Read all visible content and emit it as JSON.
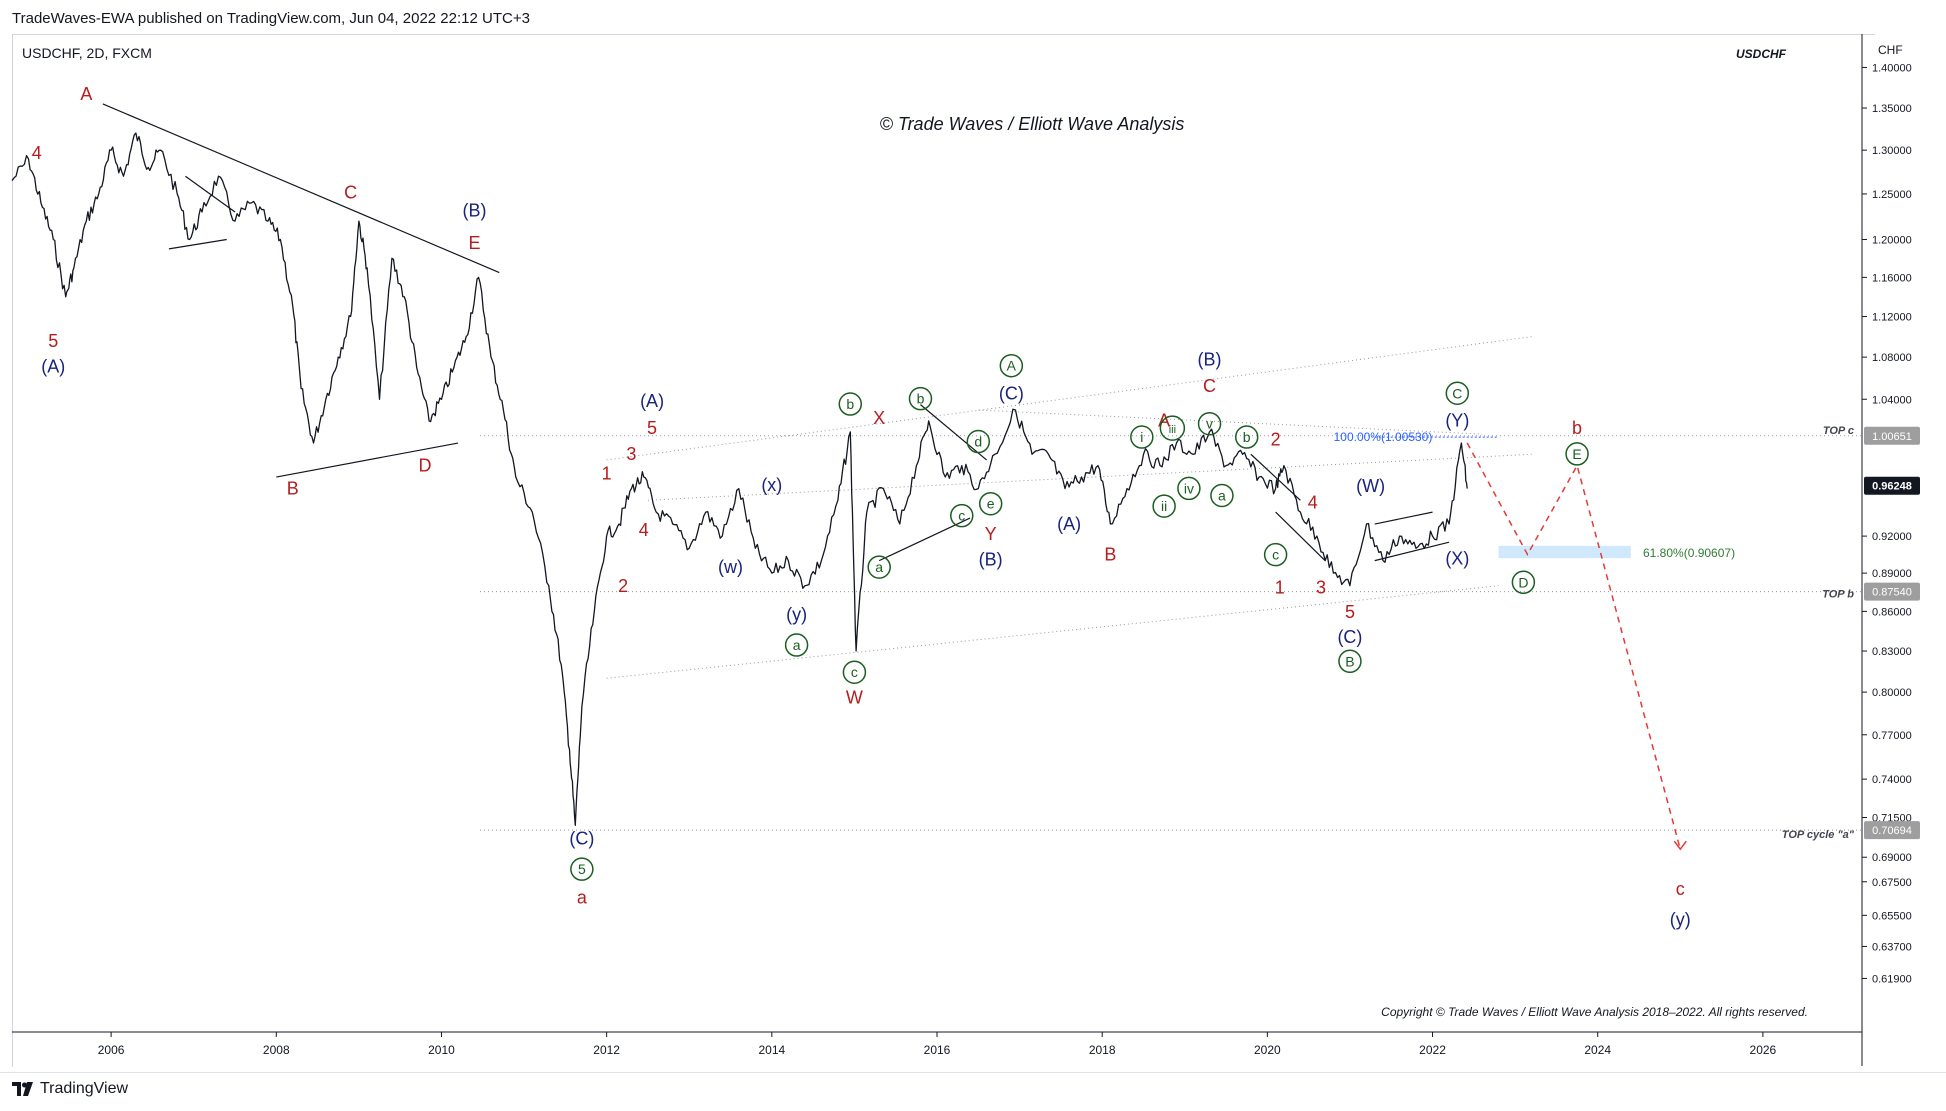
{
  "header": {
    "published": "TradeWaves-EWA published on TradingView.com, Jun 04, 2022 22:12 UTC+3"
  },
  "footer": {
    "brand": "TradingView"
  },
  "colors": {
    "price": "#131722",
    "red": "#b71c1c",
    "blue": "#1a237e",
    "green": "#1b5e20",
    "dashed": "#e53935",
    "fib": "#2962ff",
    "axis_text": "#131722",
    "grid": "#e0e3eb"
  },
  "chart_data": {
    "type": "line",
    "symbol_label": "USDCHF, 2D, FXCM",
    "symbol_right": "USDCHF",
    "watermark": "© Trade Waves / Elliott Wave Analysis",
    "copyright": "Copyright © Trade Waves / Elliott Wave Analysis 2018–2022. All rights reserved.",
    "currency": "CHF",
    "log_scale": true,
    "x_range": [
      2004.8,
      2027.2
    ],
    "y_range": [
      0.59,
      1.44
    ],
    "x_ticks": [
      2006,
      2008,
      2010,
      2012,
      2014,
      2016,
      2018,
      2020,
      2022,
      2024,
      2026
    ],
    "y_ticks": [
      "1.40000",
      "1.35000",
      "1.30000",
      "1.25000",
      "1.20000",
      "1.16000",
      "1.12000",
      "1.08000",
      "1.04000",
      "0.92000",
      "0.89000",
      "0.86000",
      "0.83000",
      "0.80000",
      "0.77000",
      "0.74000",
      "0.71500",
      "0.69000",
      "0.67500",
      "0.65500",
      "0.63700",
      "0.61900"
    ],
    "price_badges": [
      {
        "label": "1.00651",
        "value": 1.00651,
        "style": "grey"
      },
      {
        "label": "0.96248",
        "value": 0.96248,
        "style": "current"
      },
      {
        "label": "0.87540",
        "value": 0.8754,
        "style": "grey"
      },
      {
        "label": "0.70694",
        "value": 0.70694,
        "style": "grey"
      }
    ],
    "levels": [
      {
        "name": "TOP c",
        "value": 1.00651
      },
      {
        "name": "TOP b",
        "value": 0.8754
      },
      {
        "name": "TOP cycle \"a\"",
        "value": 0.70694
      }
    ],
    "fib_labels": [
      {
        "text": "100.00%(1.00530)",
        "x": 2021.4,
        "y": 1.0053,
        "color": "blue"
      },
      {
        "text": "61.80%(0.90607)",
        "x": 2024.5,
        "y": 0.90607,
        "color": "green"
      }
    ],
    "fib_zone": {
      "x0": 2022.8,
      "x1": 2024.4,
      "y0": 0.902,
      "y1": 0.912
    },
    "price_series": [
      [
        2004.8,
        1.265
      ],
      [
        2005.0,
        1.29
      ],
      [
        2005.15,
        1.24
      ],
      [
        2005.3,
        1.2
      ],
      [
        2005.45,
        1.14
      ],
      [
        2005.55,
        1.17
      ],
      [
        2005.7,
        1.22
      ],
      [
        2005.85,
        1.25
      ],
      [
        2006.0,
        1.3
      ],
      [
        2006.15,
        1.27
      ],
      [
        2006.3,
        1.32
      ],
      [
        2006.45,
        1.28
      ],
      [
        2006.6,
        1.3
      ],
      [
        2006.8,
        1.25
      ],
      [
        2006.95,
        1.2
      ],
      [
        2007.1,
        1.23
      ],
      [
        2007.3,
        1.27
      ],
      [
        2007.5,
        1.22
      ],
      [
        2007.7,
        1.24
      ],
      [
        2007.9,
        1.22
      ],
      [
        2008.05,
        1.2
      ],
      [
        2008.2,
        1.13
      ],
      [
        2008.3,
        1.05
      ],
      [
        2008.45,
        1.0
      ],
      [
        2008.6,
        1.04
      ],
      [
        2008.75,
        1.08
      ],
      [
        2008.9,
        1.12
      ],
      [
        2009.0,
        1.22
      ],
      [
        2009.1,
        1.17
      ],
      [
        2009.25,
        1.04
      ],
      [
        2009.4,
        1.18
      ],
      [
        2009.55,
        1.14
      ],
      [
        2009.7,
        1.07
      ],
      [
        2009.85,
        1.02
      ],
      [
        2010.0,
        1.04
      ],
      [
        2010.15,
        1.07
      ],
      [
        2010.3,
        1.1
      ],
      [
        2010.45,
        1.16
      ],
      [
        2010.6,
        1.08
      ],
      [
        2010.75,
        1.03
      ],
      [
        2010.9,
        0.97
      ],
      [
        2011.1,
        0.94
      ],
      [
        2011.3,
        0.88
      ],
      [
        2011.45,
        0.82
      ],
      [
        2011.55,
        0.76
      ],
      [
        2011.62,
        0.71
      ],
      [
        2011.7,
        0.79
      ],
      [
        2011.85,
        0.86
      ],
      [
        2012.0,
        0.92
      ],
      [
        2012.15,
        0.93
      ],
      [
        2012.3,
        0.96
      ],
      [
        2012.45,
        0.97
      ],
      [
        2012.6,
        0.94
      ],
      [
        2012.8,
        0.93
      ],
      [
        2013.0,
        0.91
      ],
      [
        2013.2,
        0.94
      ],
      [
        2013.4,
        0.92
      ],
      [
        2013.6,
        0.96
      ],
      [
        2013.8,
        0.91
      ],
      [
        2014.0,
        0.89
      ],
      [
        2014.2,
        0.9
      ],
      [
        2014.4,
        0.88
      ],
      [
        2014.6,
        0.9
      ],
      [
        2014.8,
        0.95
      ],
      [
        2014.95,
        1.01
      ],
      [
        2015.02,
        0.83
      ],
      [
        2015.15,
        0.94
      ],
      [
        2015.35,
        0.96
      ],
      [
        2015.55,
        0.93
      ],
      [
        2015.75,
        0.98
      ],
      [
        2015.9,
        1.02
      ],
      [
        2016.1,
        0.97
      ],
      [
        2016.3,
        0.98
      ],
      [
        2016.5,
        0.96
      ],
      [
        2016.7,
        0.99
      ],
      [
        2016.95,
        1.03
      ],
      [
        2017.15,
        0.99
      ],
      [
        2017.35,
        0.99
      ],
      [
        2017.55,
        0.96
      ],
      [
        2017.75,
        0.97
      ],
      [
        2017.95,
        0.98
      ],
      [
        2018.1,
        0.93
      ],
      [
        2018.3,
        0.96
      ],
      [
        2018.5,
        0.99
      ],
      [
        2018.7,
        0.98
      ],
      [
        2018.9,
        1.0
      ],
      [
        2019.1,
        0.99
      ],
      [
        2019.3,
        1.01
      ],
      [
        2019.5,
        0.98
      ],
      [
        2019.7,
        0.99
      ],
      [
        2019.9,
        0.97
      ],
      [
        2020.1,
        0.96
      ],
      [
        2020.2,
        0.98
      ],
      [
        2020.4,
        0.94
      ],
      [
        2020.6,
        0.92
      ],
      [
        2020.8,
        0.89
      ],
      [
        2021.0,
        0.88
      ],
      [
        2021.2,
        0.93
      ],
      [
        2021.4,
        0.9
      ],
      [
        2021.6,
        0.92
      ],
      [
        2021.8,
        0.91
      ],
      [
        2022.0,
        0.92
      ],
      [
        2022.2,
        0.93
      ],
      [
        2022.35,
        1.0
      ],
      [
        2022.42,
        0.96
      ]
    ],
    "projection": [
      [
        2022.42,
        1.0
      ],
      [
        2023.15,
        0.905
      ],
      [
        2023.75,
        0.98
      ],
      [
        2025.0,
        0.695
      ]
    ],
    "trendlines": [
      {
        "pts": [
          [
            2005.9,
            1.355
          ],
          [
            2010.7,
            1.165
          ]
        ],
        "style": "solid"
      },
      {
        "pts": [
          [
            2008.0,
            0.97
          ],
          [
            2010.2,
            1.0
          ]
        ],
        "style": "solid"
      },
      {
        "pts": [
          [
            2006.9,
            1.27
          ],
          [
            2007.5,
            1.23
          ]
        ],
        "style": "solid"
      },
      {
        "pts": [
          [
            2006.7,
            1.19
          ],
          [
            2007.4,
            1.2
          ]
        ],
        "style": "solid"
      },
      {
        "pts": [
          [
            2012.0,
            0.81
          ],
          [
            2022.8,
            0.88
          ]
        ],
        "style": "dotted"
      },
      {
        "pts": [
          [
            2012.0,
            0.985
          ],
          [
            2023.2,
            1.1
          ]
        ],
        "style": "dotted"
      },
      {
        "pts": [
          [
            2012.5,
            0.95
          ],
          [
            2023.2,
            0.99
          ]
        ],
        "style": "dotted"
      },
      {
        "pts": [
          [
            2016.5,
            1.03
          ],
          [
            2022.6,
            1.008
          ]
        ],
        "style": "dotted"
      },
      {
        "pts": [
          [
            2015.3,
            0.9
          ],
          [
            2016.4,
            0.935
          ]
        ],
        "style": "solid"
      },
      {
        "pts": [
          [
            2015.8,
            1.035
          ],
          [
            2016.6,
            0.985
          ]
        ],
        "style": "solid"
      },
      {
        "pts": [
          [
            2021.3,
            0.9
          ],
          [
            2022.2,
            0.915
          ]
        ],
        "style": "solid"
      },
      {
        "pts": [
          [
            2021.3,
            0.93
          ],
          [
            2022.0,
            0.94
          ]
        ],
        "style": "solid"
      },
      {
        "pts": [
          [
            2020.1,
            0.94
          ],
          [
            2020.7,
            0.9
          ]
        ],
        "style": "solid"
      },
      {
        "pts": [
          [
            2019.8,
            0.99
          ],
          [
            2020.4,
            0.95
          ]
        ],
        "style": "solid"
      }
    ],
    "wave_labels": [
      {
        "t": "4",
        "x": 2005.1,
        "y": 1.29,
        "c": "red"
      },
      {
        "t": "5",
        "x": 2005.3,
        "y": 1.09,
        "c": "red"
      },
      {
        "t": "(A)",
        "x": 2005.3,
        "y": 1.065,
        "c": "blue"
      },
      {
        "t": "A",
        "x": 2005.7,
        "y": 1.36,
        "c": "red"
      },
      {
        "t": "B",
        "x": 2008.2,
        "y": 0.955,
        "c": "red"
      },
      {
        "t": "C",
        "x": 2008.9,
        "y": 1.245,
        "c": "red"
      },
      {
        "t": "D",
        "x": 2009.8,
        "y": 0.975,
        "c": "red"
      },
      {
        "t": "E",
        "x": 2010.4,
        "y": 1.19,
        "c": "red"
      },
      {
        "t": "(B)",
        "x": 2010.4,
        "y": 1.225,
        "c": "blue"
      },
      {
        "t": "(C)",
        "x": 2011.7,
        "y": 0.698,
        "c": "blue"
      },
      {
        "t": "5",
        "x": 2011.7,
        "y": 0.679,
        "c": "green",
        "circle": true
      },
      {
        "t": "a",
        "x": 2011.7,
        "y": 0.662,
        "c": "red"
      },
      {
        "t": "(A)",
        "x": 2012.55,
        "y": 1.033,
        "c": "blue"
      },
      {
        "t": "5",
        "x": 2012.55,
        "y": 1.008,
        "c": "red"
      },
      {
        "t": "1",
        "x": 2012.0,
        "y": 0.968,
        "c": "red"
      },
      {
        "t": "3",
        "x": 2012.3,
        "y": 0.985,
        "c": "red"
      },
      {
        "t": "4",
        "x": 2012.45,
        "y": 0.92,
        "c": "red"
      },
      {
        "t": "2",
        "x": 2012.2,
        "y": 0.875,
        "c": "red"
      },
      {
        "t": "(x)",
        "x": 2014.0,
        "y": 0.958,
        "c": "blue"
      },
      {
        "t": "(w)",
        "x": 2013.5,
        "y": 0.89,
        "c": "blue"
      },
      {
        "t": "(y)",
        "x": 2014.3,
        "y": 0.853,
        "c": "blue"
      },
      {
        "t": "a",
        "x": 2014.3,
        "y": 0.83,
        "c": "green",
        "circle": true
      },
      {
        "t": "b",
        "x": 2014.95,
        "y": 1.03,
        "c": "green",
        "circle": true
      },
      {
        "t": "X",
        "x": 2015.3,
        "y": 1.017,
        "c": "red"
      },
      {
        "t": "c",
        "x": 2015.0,
        "y": 0.81,
        "c": "green",
        "circle": true
      },
      {
        "t": "W",
        "x": 2015.0,
        "y": 0.792,
        "c": "red"
      },
      {
        "t": "a",
        "x": 2015.3,
        "y": 0.89,
        "c": "green",
        "circle": true
      },
      {
        "t": "b",
        "x": 2015.8,
        "y": 1.035,
        "c": "green",
        "circle": true
      },
      {
        "t": "c",
        "x": 2016.3,
        "y": 0.932,
        "c": "green",
        "circle": true
      },
      {
        "t": "d",
        "x": 2016.5,
        "y": 0.996,
        "c": "green",
        "circle": true
      },
      {
        "t": "e",
        "x": 2016.65,
        "y": 0.942,
        "c": "green",
        "circle": true
      },
      {
        "t": "Y",
        "x": 2016.65,
        "y": 0.917,
        "c": "red"
      },
      {
        "t": "(B)",
        "x": 2016.65,
        "y": 0.896,
        "c": "blue"
      },
      {
        "t": "A",
        "x": 2016.9,
        "y": 1.066,
        "c": "green",
        "circle": true
      },
      {
        "t": "(C)",
        "x": 2016.9,
        "y": 1.04,
        "c": "blue"
      },
      {
        "t": "A",
        "x": 2018.75,
        "y": 1.015,
        "c": "red"
      },
      {
        "t": "(A)",
        "x": 2017.6,
        "y": 0.925,
        "c": "blue"
      },
      {
        "t": "B",
        "x": 2018.1,
        "y": 0.9,
        "c": "red"
      },
      {
        "t": "i",
        "x": 2018.48,
        "y": 1.0,
        "c": "green",
        "circle": true
      },
      {
        "t": "iii",
        "x": 2018.85,
        "y": 1.008,
        "c": "green",
        "circle": true
      },
      {
        "t": "ii",
        "x": 2018.75,
        "y": 0.94,
        "c": "green",
        "circle": true
      },
      {
        "t": "iv",
        "x": 2019.05,
        "y": 0.955,
        "c": "green",
        "circle": true
      },
      {
        "t": "v",
        "x": 2019.3,
        "y": 1.012,
        "c": "green",
        "circle": true
      },
      {
        "t": "a",
        "x": 2019.45,
        "y": 0.949,
        "c": "green",
        "circle": true
      },
      {
        "t": "b",
        "x": 2019.75,
        "y": 1.0,
        "c": "green",
        "circle": true
      },
      {
        "t": "(B)",
        "x": 2019.3,
        "y": 1.072,
        "c": "blue"
      },
      {
        "t": "C",
        "x": 2019.3,
        "y": 1.047,
        "c": "red"
      },
      {
        "t": "2",
        "x": 2020.1,
        "y": 0.998,
        "c": "red"
      },
      {
        "t": "4",
        "x": 2020.55,
        "y": 0.943,
        "c": "red"
      },
      {
        "t": "c",
        "x": 2020.1,
        "y": 0.9,
        "c": "green",
        "circle": true
      },
      {
        "t": "1",
        "x": 2020.15,
        "y": 0.874,
        "c": "red"
      },
      {
        "t": "3",
        "x": 2020.65,
        "y": 0.874,
        "c": "red"
      },
      {
        "t": "5",
        "x": 2021.0,
        "y": 0.855,
        "c": "red"
      },
      {
        "t": "(C)",
        "x": 2021.0,
        "y": 0.836,
        "c": "blue"
      },
      {
        "t": "B",
        "x": 2021.0,
        "y": 0.818,
        "c": "green",
        "circle": true
      },
      {
        "t": "(W)",
        "x": 2021.25,
        "y": 0.957,
        "c": "blue"
      },
      {
        "t": "C",
        "x": 2022.3,
        "y": 1.04,
        "c": "green",
        "circle": true
      },
      {
        "t": "(Y)",
        "x": 2022.3,
        "y": 1.015,
        "c": "blue"
      },
      {
        "t": "(X)",
        "x": 2022.3,
        "y": 0.897,
        "c": "blue"
      },
      {
        "t": "D",
        "x": 2023.1,
        "y": 0.878,
        "c": "green",
        "circle": true
      },
      {
        "t": "b",
        "x": 2023.75,
        "y": 1.008,
        "c": "red"
      },
      {
        "t": "E",
        "x": 2023.75,
        "y": 0.985,
        "c": "green",
        "circle": true
      },
      {
        "t": "c",
        "x": 2025.0,
        "y": 0.667,
        "c": "red"
      },
      {
        "t": "(y)",
        "x": 2025.0,
        "y": 0.649,
        "c": "blue"
      }
    ]
  }
}
